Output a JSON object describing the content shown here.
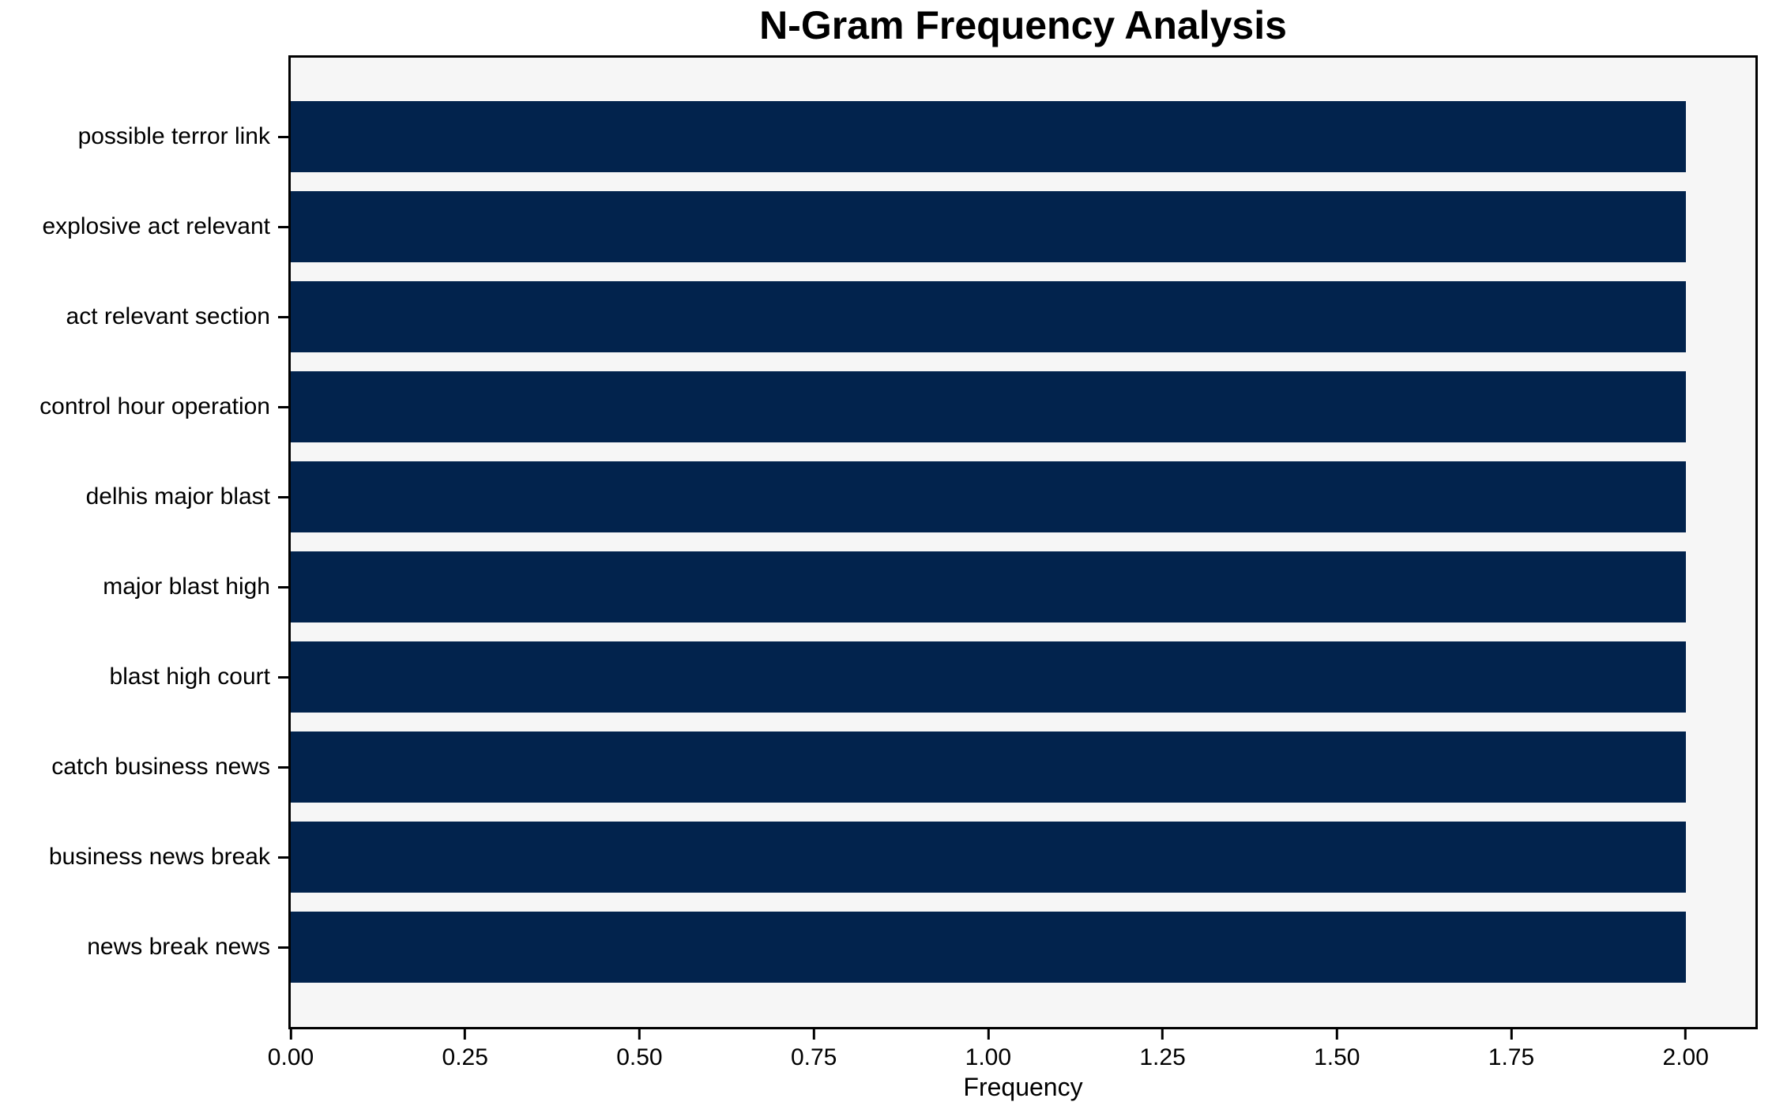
{
  "chart_data": {
    "type": "bar",
    "orientation": "horizontal",
    "title": "N-Gram Frequency Analysis",
    "xlabel": "Frequency",
    "ylabel": "",
    "categories": [
      "possible terror link",
      "explosive act relevant",
      "act relevant section",
      "control hour operation",
      "delhis major blast",
      "major blast high",
      "blast high court",
      "catch business news",
      "business news break",
      "news break news"
    ],
    "values": [
      2,
      2,
      2,
      2,
      2,
      2,
      2,
      2,
      2,
      2
    ],
    "xlim": [
      0,
      2.1
    ],
    "xticks": [
      0.0,
      0.25,
      0.5,
      0.75,
      1.0,
      1.25,
      1.5,
      1.75,
      2.0
    ],
    "xtick_labels": [
      "0.00",
      "0.25",
      "0.50",
      "0.75",
      "1.00",
      "1.25",
      "1.50",
      "1.75",
      "2.00"
    ],
    "grid": false,
    "legend": null,
    "colors": {
      "bar": "#02234d",
      "plot_background": "#f6f6f6",
      "figure_background": "#ffffff",
      "spine": "#000000",
      "text": "#000000"
    }
  }
}
